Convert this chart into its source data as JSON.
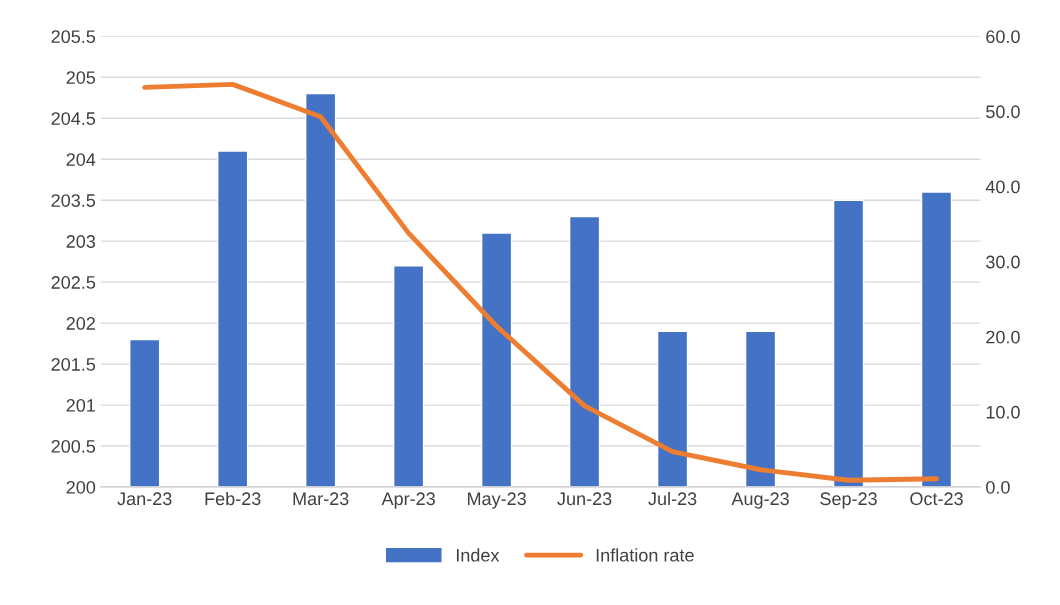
{
  "chart_data": {
    "type": "bar",
    "categories": [
      "Jan-23",
      "Feb-23",
      "Mar-23",
      "Apr-23",
      "May-23",
      "Jun-23",
      "Jul-23",
      "Aug-23",
      "Sep-23",
      "Oct-23"
    ],
    "series": [
      {
        "name": "Index",
        "color": "#4472c4",
        "values": [
          201.8,
          204.1,
          204.8,
          202.7,
          203.1,
          203.3,
          201.9,
          201.9,
          203.5,
          203.6
        ]
      },
      {
        "name": "Inflation rate",
        "type": "line",
        "axis": "y2",
        "color": "#ed7d31",
        "values": [
          53.2,
          53.6,
          49.3,
          33.8,
          21.4,
          10.8,
          4.7,
          2.3,
          0.9,
          1.1
        ]
      }
    ],
    "ylim": [
      200,
      205.5
    ],
    "yticks": [
      200,
      200.5,
      201,
      201.5,
      202,
      202.5,
      203,
      203.5,
      204,
      204.5,
      205,
      205.5
    ],
    "y2lim": [
      0,
      60
    ],
    "y2ticks": [
      {
        "value": 0,
        "label": "0.0"
      },
      {
        "value": 10,
        "label": "10.0"
      },
      {
        "value": 20,
        "label": "20.0"
      },
      {
        "value": 30,
        "label": "30.0"
      },
      {
        "value": 40,
        "label": "40.0"
      },
      {
        "value": 50,
        "label": "50.0"
      },
      {
        "value": 60,
        "label": "60.0"
      }
    ],
    "grid": "y",
    "legend": "bottom",
    "marker": "none",
    "line_style": "solid"
  }
}
